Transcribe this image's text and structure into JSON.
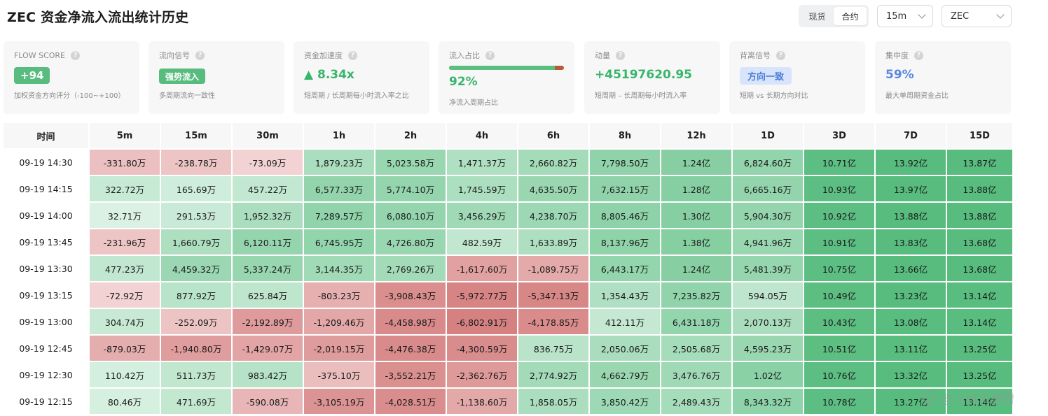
{
  "title": "ZEC 资金净流入流出统计历史",
  "market_toggle": {
    "options": [
      "现货",
      "合约"
    ],
    "active": "合约"
  },
  "interval_select": {
    "value": "15m"
  },
  "coin_select": {
    "value": "ZEC"
  },
  "cards": [
    {
      "label": "FLOW SCORE",
      "value": "+94",
      "desc": "加权资金方向评分（-100~+100）"
    },
    {
      "label": "流向信号",
      "value": "强势流入",
      "desc": "多周期流向一致性"
    },
    {
      "label": "资金加速度",
      "value": "▲ 8.34x",
      "desc": "短周期 / 长周期每小时流入率之比"
    },
    {
      "label": "流入占比",
      "value": "92%",
      "desc": "净流入周期占比",
      "ratio": 0.92
    },
    {
      "label": "动量",
      "value": "+45197620.95",
      "desc": "短周期 – 长周期每小时流入率"
    },
    {
      "label": "背离信号",
      "value": "方向一致",
      "desc": "短期 vs 长期方向对比"
    },
    {
      "label": "集中度",
      "value": "59%",
      "desc": "最大单周期资金占比"
    }
  ],
  "colors": {
    "positive": "#57bc7e",
    "negative": "#d98686",
    "accent_blue": "#5a88e0"
  },
  "table": {
    "headers": [
      "时间",
      "5m",
      "15m",
      "30m",
      "1h",
      "2h",
      "4h",
      "6h",
      "8h",
      "12h",
      "1D",
      "3D",
      "7D",
      "15D"
    ],
    "rows": [
      {
        "time": "09-19 14:30",
        "cells": [
          "-331.80万",
          "-238.78万",
          "-73.09万",
          "1,879.23万",
          "5,023.58万",
          "1,471.37万",
          "2,660.82万",
          "7,798.50万",
          "1.24亿",
          "6,824.60万",
          "10.71亿",
          "13.92亿",
          "13.87亿"
        ]
      },
      {
        "time": "09-19 14:15",
        "cells": [
          "322.72万",
          "165.69万",
          "457.22万",
          "6,577.33万",
          "5,774.10万",
          "1,745.59万",
          "4,635.50万",
          "7,632.15万",
          "1.28亿",
          "6,665.16万",
          "10.93亿",
          "13.97亿",
          "13.88亿"
        ]
      },
      {
        "time": "09-19 14:00",
        "cells": [
          "32.71万",
          "291.53万",
          "1,952.32万",
          "7,289.57万",
          "6,080.10万",
          "3,456.29万",
          "4,238.70万",
          "8,805.46万",
          "1.30亿",
          "5,904.30万",
          "10.92亿",
          "13.88亿",
          "13.88亿"
        ]
      },
      {
        "time": "09-19 13:45",
        "cells": [
          "-231.96万",
          "1,660.79万",
          "6,120.11万",
          "6,745.95万",
          "4,726.80万",
          "482.59万",
          "1,633.89万",
          "8,137.96万",
          "1.38亿",
          "4,941.96万",
          "10.91亿",
          "13.83亿",
          "13.68亿"
        ]
      },
      {
        "time": "09-19 13:30",
        "cells": [
          "477.23万",
          "4,459.32万",
          "5,337.24万",
          "3,144.35万",
          "2,769.26万",
          "-1,617.60万",
          "-1,089.75万",
          "6,443.17万",
          "1.24亿",
          "5,481.39万",
          "10.75亿",
          "13.66亿",
          "13.68亿"
        ]
      },
      {
        "time": "09-19 13:15",
        "cells": [
          "-72.92万",
          "877.92万",
          "625.84万",
          "-803.23万",
          "-3,908.43万",
          "-5,972.77万",
          "-5,347.13万",
          "1,354.43万",
          "7,235.82万",
          "594.05万",
          "10.49亿",
          "13.23亿",
          "13.14亿"
        ]
      },
      {
        "time": "09-19 13:00",
        "cells": [
          "304.74万",
          "-252.09万",
          "-2,192.89万",
          "-1,209.46万",
          "-4,458.98万",
          "-6,802.91万",
          "-4,178.85万",
          "412.11万",
          "6,431.18万",
          "2,070.13万",
          "10.43亿",
          "13.08亿",
          "13.14亿"
        ]
      },
      {
        "time": "09-19 12:45",
        "cells": [
          "-879.03万",
          "-1,940.80万",
          "-1,429.07万",
          "-2,019.15万",
          "-4,476.38万",
          "-4,300.59万",
          "836.75万",
          "2,050.06万",
          "2,505.68万",
          "4,595.23万",
          "10.51亿",
          "13.11亿",
          "13.25亿"
        ]
      },
      {
        "time": "09-19 12:30",
        "cells": [
          "110.42万",
          "511.73万",
          "983.42万",
          "-375.10万",
          "-3,552.21万",
          "-2,362.76万",
          "2,774.92万",
          "4,662.79万",
          "3,476.76万",
          "1.02亿",
          "10.76亿",
          "13.32亿",
          "13.25亿"
        ]
      },
      {
        "time": "09-19 12:15",
        "cells": [
          "80.46万",
          "471.69万",
          "-590.08万",
          "-3,105.19万",
          "-4,028.51万",
          "-1,138.60万",
          "1,858.05万",
          "3,850.42万",
          "2,489.43万",
          "8,343.32万",
          "10.78亿",
          "13.27亿",
          "13.14亿"
        ]
      }
    ]
  },
  "watermark": "@ SNDK唐僧"
}
